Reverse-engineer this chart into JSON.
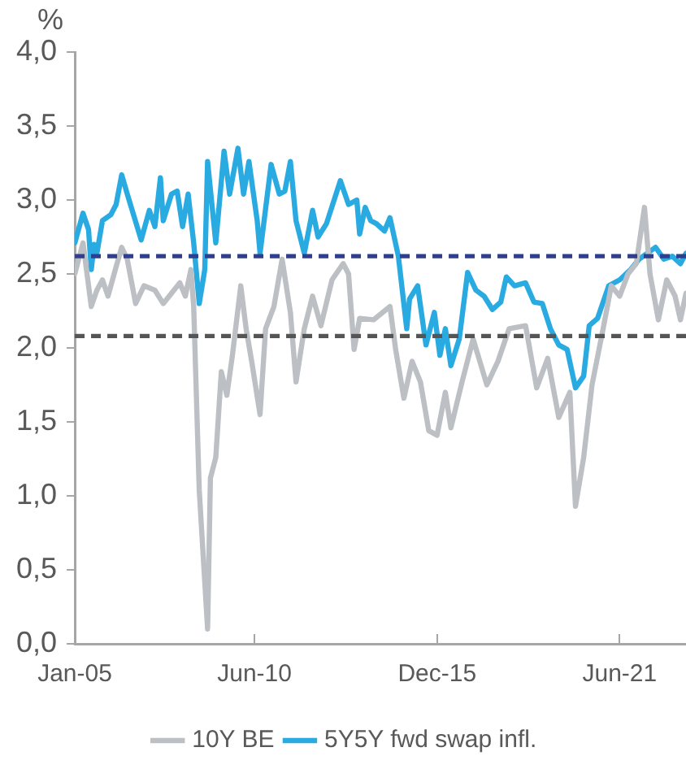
{
  "chart_data": {
    "type": "line",
    "ylabel": "%",
    "ylim": [
      0,
      4
    ],
    "yticks": [
      {
        "value": 0,
        "label": "0,0"
      },
      {
        "value": 0.5,
        "label": "0,5"
      },
      {
        "value": 1,
        "label": "1,0"
      },
      {
        "value": 1.5,
        "label": "1,5"
      },
      {
        "value": 2,
        "label": "2,0"
      },
      {
        "value": 2.5,
        "label": "2,5"
      },
      {
        "value": 3,
        "label": "3,0"
      },
      {
        "value": 3.5,
        "label": "3,5"
      },
      {
        "value": 4,
        "label": "4,0"
      }
    ],
    "xlim": [
      "2005-01",
      "2023-06"
    ],
    "xticks": [
      {
        "value": "2005-01",
        "label": "Jan-05"
      },
      {
        "value": "2010-06",
        "label": "Jun-10"
      },
      {
        "value": "2015-12",
        "label": "Dec-15"
      },
      {
        "value": "2021-06",
        "label": "Jun-21"
      }
    ],
    "grid": false,
    "legend": "bottom",
    "marker": "none",
    "line_style": "solid",
    "series": [
      {
        "name": "10Y BE",
        "color": "#bcc0c4",
        "x": [
          "2005-01",
          "2005-04",
          "2005-07",
          "2005-09",
          "2005-11",
          "2006-01",
          "2006-04",
          "2006-06",
          "2006-08",
          "2006-11",
          "2007-02",
          "2007-06",
          "2007-09",
          "2007-12",
          "2008-03",
          "2008-05",
          "2008-07",
          "2008-08",
          "2008-10",
          "2009-01",
          "2009-02",
          "2009-04",
          "2009-06",
          "2009-08",
          "2009-10",
          "2010-01",
          "2010-03",
          "2010-05",
          "2010-08",
          "2010-10",
          "2011-01",
          "2011-04",
          "2011-07",
          "2011-09",
          "2011-12",
          "2012-03",
          "2012-06",
          "2012-10",
          "2013-02",
          "2013-04",
          "2013-06",
          "2013-08",
          "2014-01",
          "2014-07",
          "2014-09",
          "2014-12",
          "2015-03",
          "2015-06",
          "2015-09",
          "2015-12",
          "2016-03",
          "2016-05",
          "2016-09",
          "2017-01",
          "2017-06",
          "2017-10",
          "2018-02",
          "2018-08",
          "2018-12",
          "2019-04",
          "2019-08",
          "2019-12",
          "2020-02",
          "2020-05",
          "2020-08",
          "2020-12",
          "2021-03",
          "2021-06",
          "2021-09",
          "2021-12",
          "2022-03",
          "2022-05",
          "2022-08",
          "2022-11",
          "2023-02",
          "2023-04",
          "2023-06"
        ],
        "values": [
          2.5,
          2.71,
          2.28,
          2.39,
          2.46,
          2.35,
          2.55,
          2.68,
          2.6,
          2.3,
          2.42,
          2.39,
          2.3,
          2.37,
          2.44,
          2.35,
          2.53,
          2.28,
          1.04,
          0.1,
          1.12,
          1.26,
          1.84,
          1.68,
          1.95,
          2.42,
          2.13,
          1.91,
          1.55,
          2.13,
          2.28,
          2.6,
          2.24,
          1.77,
          2.13,
          2.35,
          2.15,
          2.46,
          2.57,
          2.5,
          1.99,
          2.2,
          2.19,
          2.28,
          1.99,
          1.66,
          1.91,
          1.77,
          1.44,
          1.41,
          1.7,
          1.46,
          1.77,
          2.06,
          1.75,
          1.91,
          2.13,
          2.15,
          1.73,
          1.93,
          1.53,
          1.7,
          0.93,
          1.26,
          1.75,
          2.13,
          2.42,
          2.35,
          2.5,
          2.57,
          2.95,
          2.5,
          2.19,
          2.46,
          2.35,
          2.19,
          2.37
        ]
      },
      {
        "name": "5Y5Y fwd swap infl.",
        "color": "#29abe2",
        "x": [
          "2005-01",
          "2005-04",
          "2005-06",
          "2005-07",
          "2005-08",
          "2005-09",
          "2005-11",
          "2006-02",
          "2006-04",
          "2006-06",
          "2006-08",
          "2007-01",
          "2007-04",
          "2007-06",
          "2007-08",
          "2007-09",
          "2007-12",
          "2008-02",
          "2008-04",
          "2008-06",
          "2008-08",
          "2008-10",
          "2008-12",
          "2009-01",
          "2009-04",
          "2009-07",
          "2009-09",
          "2009-12",
          "2010-02",
          "2010-04",
          "2010-07",
          "2010-08",
          "2010-12",
          "2011-03",
          "2011-05",
          "2011-07",
          "2011-09",
          "2011-12",
          "2012-03",
          "2012-05",
          "2012-08",
          "2013-01",
          "2013-04",
          "2013-07",
          "2013-08",
          "2013-10",
          "2013-12",
          "2014-02",
          "2014-05",
          "2014-07",
          "2014-10",
          "2015-01",
          "2015-02",
          "2015-05",
          "2015-08",
          "2015-11",
          "2016-01",
          "2016-03",
          "2016-05",
          "2016-08",
          "2016-11",
          "2017-02",
          "2017-05",
          "2017-08",
          "2017-11",
          "2018-01",
          "2018-04",
          "2018-08",
          "2018-11",
          "2019-02",
          "2019-05",
          "2019-08",
          "2019-11",
          "2020-02",
          "2020-05",
          "2020-07",
          "2020-10",
          "2021-02",
          "2021-06",
          "2021-10",
          "2022-01",
          "2022-04",
          "2022-07",
          "2022-10",
          "2023-01",
          "2023-04",
          "2023-06"
        ],
        "values": [
          2.71,
          2.91,
          2.8,
          2.53,
          2.7,
          2.64,
          2.86,
          2.9,
          2.97,
          3.17,
          3.04,
          2.73,
          2.93,
          2.82,
          3.15,
          2.86,
          3.04,
          3.06,
          2.82,
          3.04,
          2.71,
          2.3,
          2.53,
          3.26,
          2.71,
          3.33,
          3.04,
          3.35,
          3.04,
          3.26,
          2.86,
          2.64,
          3.24,
          3.04,
          3.06,
          3.26,
          2.86,
          2.64,
          2.93,
          2.75,
          2.84,
          3.13,
          2.97,
          3.0,
          2.77,
          2.95,
          2.86,
          2.84,
          2.79,
          2.88,
          2.62,
          2.13,
          2.33,
          2.42,
          2.02,
          2.24,
          1.95,
          2.13,
          1.88,
          2.06,
          2.51,
          2.39,
          2.35,
          2.26,
          2.31,
          2.48,
          2.42,
          2.44,
          2.31,
          2.3,
          2.13,
          2.02,
          1.99,
          1.73,
          1.81,
          2.15,
          2.2,
          2.42,
          2.46,
          2.53,
          2.6,
          2.64,
          2.68,
          2.6,
          2.62,
          2.57,
          2.64
        ]
      }
    ],
    "ref_lines": [
      {
        "axis": "y",
        "value": 2.62,
        "color": "#2e3f8f",
        "line_style": "dashed"
      },
      {
        "axis": "y",
        "value": 2.08,
        "color": "#555555",
        "line_style": "dashed"
      }
    ]
  }
}
